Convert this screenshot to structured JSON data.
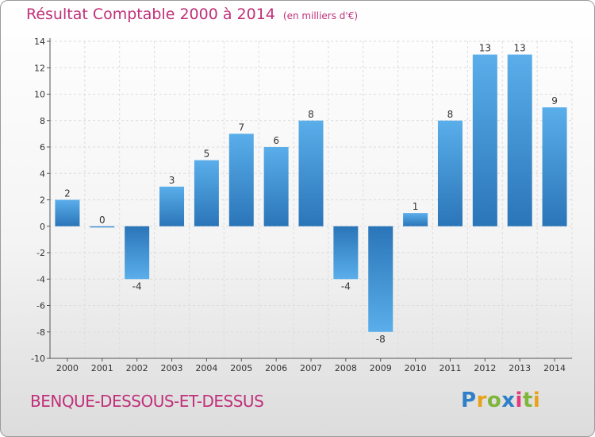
{
  "header": {
    "title": "Résultat Comptable 2000 à 2014",
    "unit": "(en milliers d'€)"
  },
  "footer": {
    "commune": "BENQUE-DESSOUS-ET-DESSUS",
    "logo": {
      "letters": [
        "P",
        "r",
        "o",
        "x",
        "i",
        "t",
        "i"
      ],
      "colors": [
        "#2f7fc8",
        "#e8a21a",
        "#7fb53a",
        "#2f7fc8",
        "#e23a7a",
        "#7fb53a",
        "#e8a21a"
      ]
    }
  },
  "colors": {
    "accent": "#c0307a",
    "bar_light": "#5aaeea",
    "bar_dark": "#2a75b8",
    "axis": "#555555",
    "grid": "#dcdcdc",
    "label": "#333333"
  },
  "chart_data": {
    "type": "bar",
    "title": "Résultat Comptable 2000 à 2014",
    "xlabel": "",
    "ylabel": "",
    "ylim": [
      -10,
      14
    ],
    "yticks": [
      -10,
      -8,
      -6,
      -4,
      -2,
      0,
      2,
      4,
      6,
      8,
      10,
      12,
      14
    ],
    "grid": true,
    "categories": [
      "2000",
      "2001",
      "2002",
      "2003",
      "2004",
      "2005",
      "2006",
      "2007",
      "2008",
      "2009",
      "2010",
      "2011",
      "2012",
      "2013",
      "2014"
    ],
    "values": [
      2,
      0,
      -4,
      3,
      5,
      7,
      6,
      8,
      -4,
      -8,
      1,
      8,
      13,
      13,
      9
    ]
  }
}
